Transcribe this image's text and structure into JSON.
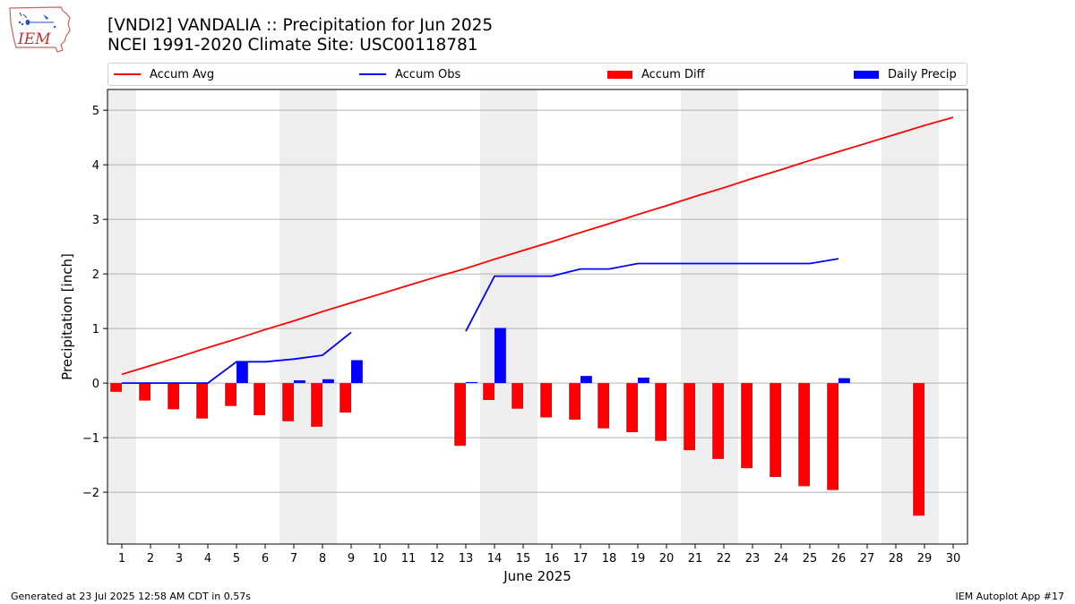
{
  "header": {
    "title_line1": "[VNDI2] VANDALIA :: Precipitation for Jun 2025",
    "title_line2": "NCEI 1991-2020 Climate Site: USC00118781",
    "logo_text": "IEM"
  },
  "legend": {
    "items": [
      {
        "label": "Accum Avg",
        "kind": "line",
        "color": "#ff0000"
      },
      {
        "label": "Accum Obs",
        "kind": "line",
        "color": "#0000ff"
      },
      {
        "label": "Accum Diff",
        "kind": "patch",
        "color": "#ff0000"
      },
      {
        "label": "Daily Precip",
        "kind": "patch",
        "color": "#0000ff"
      }
    ]
  },
  "footer": {
    "left": "Generated at 23 Jul 2025 12:58 AM CDT in 0.57s",
    "right": "IEM Autoplot App #17"
  },
  "chart_data": {
    "type": "bar",
    "xlabel": "June 2025",
    "ylabel": "Precipitation [inch]",
    "xlim": [
      0.5,
      30.5
    ],
    "ylim": [
      -2.95,
      5.38
    ],
    "x_ticks": [
      1,
      2,
      3,
      4,
      5,
      6,
      7,
      8,
      9,
      10,
      11,
      12,
      13,
      14,
      15,
      16,
      17,
      18,
      19,
      20,
      21,
      22,
      23,
      24,
      25,
      26,
      27,
      28,
      29,
      30
    ],
    "y_ticks": [
      -2,
      -1,
      0,
      1,
      2,
      3,
      4,
      5
    ],
    "y_tick_labels": [
      "−2",
      "−1",
      "0",
      "1",
      "2",
      "3",
      "4",
      "5"
    ],
    "grid": "horizontal",
    "legend_position": "top",
    "weekend_shading": [
      [
        0.5,
        1.5
      ],
      [
        6.5,
        8.5
      ],
      [
        13.5,
        15.5
      ],
      [
        20.5,
        22.5
      ],
      [
        27.5,
        29.5
      ]
    ],
    "x": [
      1,
      2,
      3,
      4,
      5,
      6,
      7,
      8,
      9,
      10,
      11,
      12,
      13,
      14,
      15,
      16,
      17,
      18,
      19,
      20,
      21,
      22,
      23,
      24,
      25,
      26,
      27,
      28,
      29,
      30
    ],
    "series": [
      {
        "name": "Accum Avg",
        "type": "line",
        "color": "#ff0000",
        "values": [
          0.16,
          0.32,
          0.48,
          0.65,
          0.81,
          0.98,
          1.14,
          1.31,
          1.47,
          1.63,
          1.79,
          1.95,
          2.1,
          2.27,
          2.43,
          2.59,
          2.76,
          2.92,
          3.09,
          3.25,
          3.42,
          3.58,
          3.75,
          3.91,
          4.08,
          4.24,
          4.4,
          4.56,
          4.72,
          4.87
        ]
      },
      {
        "name": "Accum Obs",
        "type": "line",
        "color": "#0000ff",
        "values": [
          0.0,
          0.0,
          0.0,
          0.0,
          0.39,
          0.39,
          0.44,
          0.51,
          0.93,
          null,
          null,
          null,
          0.95,
          1.96,
          1.96,
          1.96,
          2.09,
          2.09,
          2.19,
          2.19,
          2.19,
          2.19,
          2.19,
          2.19,
          2.19,
          2.28,
          null,
          null,
          null,
          null
        ]
      },
      {
        "name": "Accum Diff",
        "type": "bar",
        "color": "#ff0000",
        "values": [
          -0.16,
          -0.32,
          -0.48,
          -0.65,
          -0.42,
          -0.59,
          -0.7,
          -0.8,
          -0.54,
          null,
          null,
          null,
          -1.15,
          -0.31,
          -0.47,
          -0.63,
          -0.67,
          -0.83,
          -0.9,
          -1.06,
          -1.23,
          -1.39,
          -1.56,
          -1.72,
          -1.89,
          -1.96,
          null,
          null,
          -2.43,
          null
        ]
      },
      {
        "name": "Daily Precip",
        "type": "bar",
        "color": "#0000ff",
        "values": [
          0,
          0,
          0,
          0,
          0.39,
          0,
          0.05,
          0.07,
          0.42,
          null,
          null,
          null,
          0.02,
          1.01,
          0,
          0,
          0.13,
          0,
          0.1,
          0,
          0,
          0,
          0,
          0,
          0,
          0.09,
          null,
          null,
          null,
          null
        ]
      }
    ]
  }
}
